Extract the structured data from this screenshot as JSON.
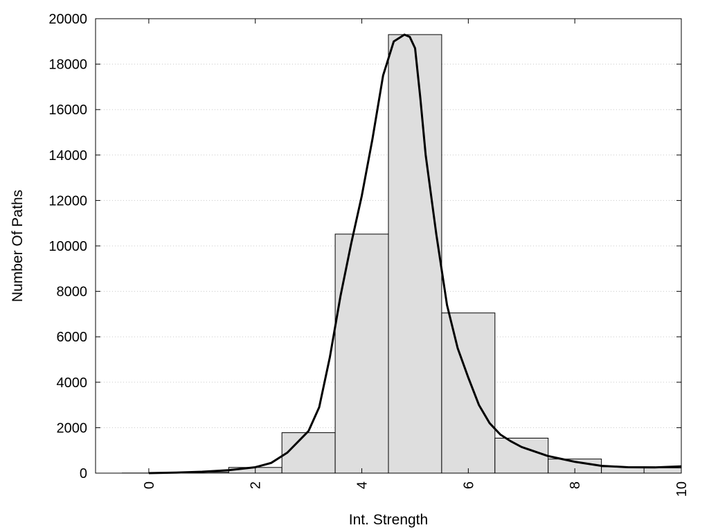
{
  "chart_data": {
    "type": "bar",
    "xlabel": "Int. Strength",
    "ylabel": "Number Of Paths",
    "xlim": [
      -1,
      10
    ],
    "ylim": [
      0,
      20000
    ],
    "x_ticks": [
      0,
      2,
      4,
      6,
      8,
      10
    ],
    "y_ticks": [
      0,
      2000,
      4000,
      6000,
      8000,
      10000,
      12000,
      14000,
      16000,
      18000,
      20000
    ],
    "grid": "horizontal-dotted",
    "bar_color": "#dedede",
    "bar_edge_color": "#000000",
    "bin_width": 1,
    "bars": [
      {
        "x": 0,
        "value": 5
      },
      {
        "x": 1,
        "value": 40
      },
      {
        "x": 2,
        "value": 250
      },
      {
        "x": 3,
        "value": 1780
      },
      {
        "x": 4,
        "value": 10520
      },
      {
        "x": 5,
        "value": 19300
      },
      {
        "x": 6,
        "value": 7050
      },
      {
        "x": 7,
        "value": 1540
      },
      {
        "x": 8,
        "value": 620
      },
      {
        "x": 9,
        "value": 280
      },
      {
        "x": 9.8,
        "value": 230
      }
    ],
    "series": [
      {
        "type": "line",
        "color": "#000000",
        "x": [
          0,
          0.5,
          1,
          1.5,
          2,
          2.3,
          2.6,
          3,
          3.2,
          3.4,
          3.6,
          3.8,
          4,
          4.2,
          4.4,
          4.6,
          4.8,
          4.9,
          5,
          5.1,
          5.2,
          5.4,
          5.6,
          5.8,
          6,
          6.2,
          6.4,
          6.6,
          6.8,
          7,
          7.5,
          8,
          8.5,
          9,
          9.5,
          10
        ],
        "y": [
          0,
          20,
          60,
          130,
          260,
          450,
          900,
          1850,
          2900,
          5100,
          7800,
          10100,
          12200,
          14700,
          17500,
          19000,
          19300,
          19200,
          18700,
          16500,
          14000,
          10500,
          7400,
          5500,
          4200,
          3000,
          2200,
          1700,
          1400,
          1150,
          750,
          500,
          320,
          260,
          250,
          300
        ]
      }
    ]
  }
}
